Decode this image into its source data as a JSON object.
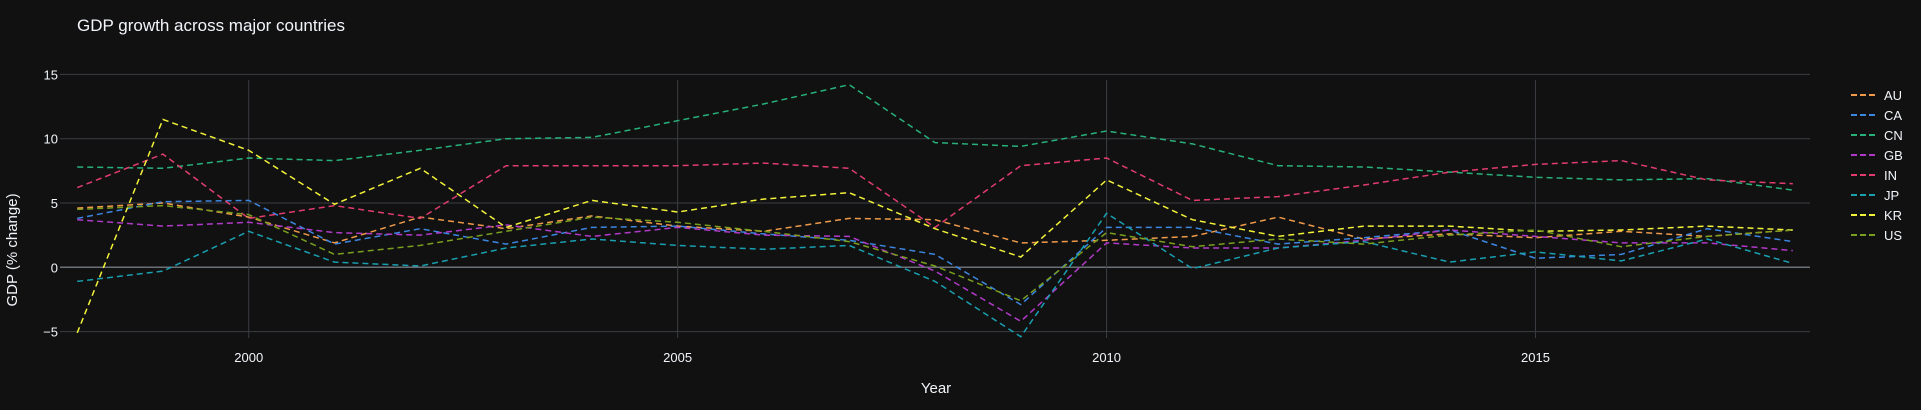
{
  "chart_data": {
    "type": "line",
    "title": "GDP growth across major countries",
    "xlabel": "Year",
    "ylabel": "GDP (% change)",
    "xlim": [
      1997.8,
      2018.2
    ],
    "ylim": [
      -5.5,
      15.5
    ],
    "xticks": [
      2000,
      2005,
      2010,
      2015
    ],
    "yticks": [
      -5,
      0,
      5,
      10,
      15
    ],
    "ytick_labels": [
      "−5",
      "0",
      "5",
      "10",
      "15"
    ],
    "grid": true,
    "line_style": "dashed",
    "legend_position": "right",
    "x": [
      1998,
      1999,
      2000,
      2001,
      2002,
      2003,
      2004,
      2005,
      2006,
      2007,
      2008,
      2009,
      2010,
      2011,
      2012,
      2013,
      2014,
      2015,
      2016,
      2017,
      2018
    ],
    "series": [
      {
        "name": "AU",
        "color": "#EF9A4A",
        "values": [
          4.6,
          5.0,
          3.9,
          1.9,
          3.9,
          3.0,
          4.0,
          3.2,
          2.8,
          3.8,
          3.7,
          1.9,
          2.1,
          2.4,
          3.9,
          2.2,
          2.6,
          2.3,
          2.8,
          2.4,
          2.9
        ]
      },
      {
        "name": "CA",
        "color": "#3C86E0",
        "values": [
          3.8,
          5.1,
          5.2,
          1.8,
          3.0,
          1.8,
          3.1,
          3.2,
          2.6,
          2.1,
          1.0,
          -2.9,
          3.1,
          3.1,
          1.8,
          2.3,
          2.9,
          0.7,
          1.0,
          3.0,
          2.0
        ]
      },
      {
        "name": "CN",
        "color": "#28B07A",
        "values": [
          7.8,
          7.7,
          8.5,
          8.3,
          9.1,
          10.0,
          10.1,
          11.4,
          12.7,
          14.2,
          9.7,
          9.4,
          10.6,
          9.6,
          7.9,
          7.8,
          7.4,
          7.0,
          6.8,
          6.9,
          6.0
        ]
      },
      {
        "name": "GB",
        "color": "#B03AC8",
        "values": [
          3.7,
          3.2,
          3.5,
          2.7,
          2.5,
          3.3,
          2.4,
          3.1,
          2.5,
          2.4,
          -0.3,
          -4.2,
          1.9,
          1.5,
          1.5,
          2.1,
          2.9,
          2.4,
          1.9,
          1.9,
          1.3
        ]
      },
      {
        "name": "IN",
        "color": "#E03C6E",
        "values": [
          6.2,
          8.8,
          3.8,
          4.8,
          3.8,
          7.9,
          7.9,
          7.9,
          8.1,
          7.7,
          3.1,
          7.9,
          8.5,
          5.2,
          5.5,
          6.4,
          7.4,
          8.0,
          8.3,
          6.8,
          6.5
        ]
      },
      {
        "name": "JP",
        "color": "#199FB0",
        "values": [
          -1.1,
          -0.3,
          2.8,
          0.4,
          0.1,
          1.5,
          2.2,
          1.7,
          1.4,
          1.7,
          -1.1,
          -5.4,
          4.2,
          -0.1,
          1.5,
          2.0,
          0.4,
          1.2,
          0.5,
          2.2,
          0.3
        ]
      },
      {
        "name": "KR",
        "color": "#F2F23A",
        "values": [
          -5.1,
          11.5,
          9.1,
          4.9,
          7.7,
          3.1,
          5.2,
          4.3,
          5.3,
          5.8,
          3.0,
          0.8,
          6.8,
          3.7,
          2.4,
          3.2,
          3.2,
          2.8,
          2.9,
          3.2,
          2.9
        ]
      },
      {
        "name": "US",
        "color": "#7A9E1E",
        "values": [
          4.5,
          4.8,
          4.1,
          1.0,
          1.7,
          2.8,
          3.9,
          3.5,
          2.8,
          2.0,
          0.1,
          -2.6,
          2.7,
          1.6,
          2.2,
          1.8,
          2.5,
          2.9,
          1.6,
          2.4,
          2.9
        ]
      }
    ]
  }
}
